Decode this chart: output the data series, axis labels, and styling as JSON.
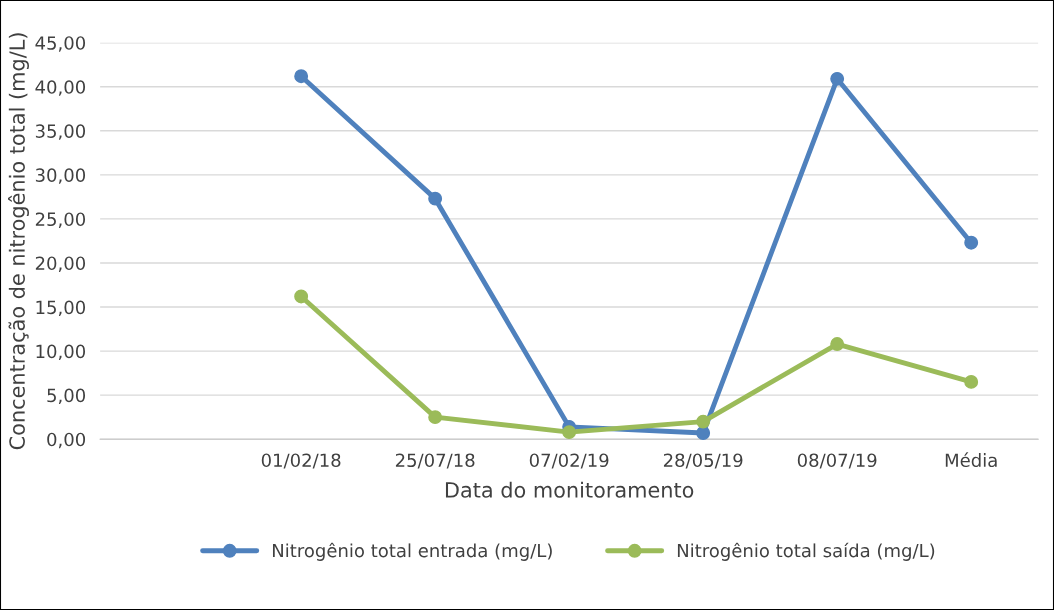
{
  "chart_data": {
    "type": "line",
    "xlabel": "Data do monitoramento",
    "ylabel": "Concentração de nitrogênio total (mg/L)",
    "categories": [
      null,
      "01/02/18",
      "25/07/18",
      "07/02/19",
      "28/05/19",
      "08/07/19",
      "Média"
    ],
    "series": [
      {
        "name": "Nitrogênio total entrada (mg/L)",
        "color": "#4f81bd",
        "values": [
          null,
          41.2,
          27.3,
          1.4,
          0.7,
          40.9,
          22.3
        ]
      },
      {
        "name": "Nitrogênio total saída (mg/L)",
        "color": "#9bbb59",
        "values": [
          null,
          16.2,
          2.5,
          0.8,
          2.0,
          10.8,
          6.5
        ]
      }
    ],
    "ylim": [
      0,
      45
    ],
    "yticks": [
      {
        "value": 0,
        "label": "0,00"
      },
      {
        "value": 5,
        "label": "5,00"
      },
      {
        "value": 10,
        "label": "10,00"
      },
      {
        "value": 15,
        "label": "15,00"
      },
      {
        "value": 20,
        "label": "20,00"
      },
      {
        "value": 25,
        "label": "25,00"
      },
      {
        "value": 30,
        "label": "30,00"
      },
      {
        "value": 35,
        "label": "35,00"
      },
      {
        "value": 40,
        "label": "40,00"
      },
      {
        "value": 45,
        "label": "45,00"
      }
    ],
    "grid": "y",
    "legend": "bottom",
    "marker": "circle",
    "line_style": "solid"
  }
}
